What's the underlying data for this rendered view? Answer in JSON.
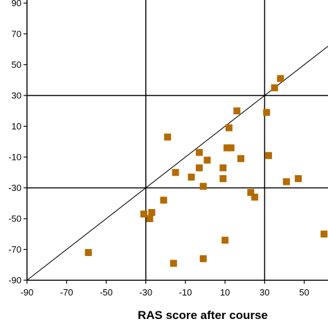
{
  "chart_data": {
    "type": "scatter",
    "title": "",
    "xlabel": "RAS score after course",
    "ylabel": "",
    "xlim": [
      -90,
      62
    ],
    "ylim": [
      -90,
      92
    ],
    "xticks": [
      -90,
      -70,
      -50,
      -30,
      -10,
      10,
      30,
      50
    ],
    "yticks": [
      -90,
      -70,
      -50,
      -30,
      -10,
      10,
      30,
      50,
      70,
      90
    ],
    "xtick_labels": [
      "-90",
      "-70",
      "-50",
      "-30",
      "-10",
      "10",
      "30",
      "50"
    ],
    "ytick_labels": [
      "-90",
      "-70",
      "-50",
      "-30",
      "-10",
      "10",
      "30",
      "50",
      "70",
      "90"
    ],
    "reference_lines": {
      "x": [
        -30,
        30
      ],
      "y": [
        -30,
        30
      ]
    },
    "diagonal": "y = x",
    "grid": false,
    "marker_color": "#b36b00",
    "marker_shape": "square",
    "series": [
      {
        "points": [
          {
            "x": -59,
            "y": -72
          },
          {
            "x": -31,
            "y": -47
          },
          {
            "x": -28,
            "y": -50
          },
          {
            "x": -27,
            "y": -46
          },
          {
            "x": -21,
            "y": -38
          },
          {
            "x": -19,
            "y": 3
          },
          {
            "x": -16,
            "y": -79
          },
          {
            "x": -15,
            "y": -20
          },
          {
            "x": -7,
            "y": -23
          },
          {
            "x": -3,
            "y": -7
          },
          {
            "x": -3,
            "y": -17
          },
          {
            "x": -1,
            "y": -76
          },
          {
            "x": -1,
            "y": -29
          },
          {
            "x": 1,
            "y": -12
          },
          {
            "x": 9,
            "y": -17
          },
          {
            "x": 9,
            "y": -24
          },
          {
            "x": 10,
            "y": -64
          },
          {
            "x": 11,
            "y": -4
          },
          {
            "x": 12,
            "y": 9
          },
          {
            "x": 13,
            "y": -4
          },
          {
            "x": 16,
            "y": 20
          },
          {
            "x": 18,
            "y": -11
          },
          {
            "x": 23,
            "y": -33
          },
          {
            "x": 25,
            "y": -36
          },
          {
            "x": 31,
            "y": 19
          },
          {
            "x": 32,
            "y": -9
          },
          {
            "x": 35,
            "y": 35
          },
          {
            "x": 38,
            "y": 41
          },
          {
            "x": 41,
            "y": -26
          },
          {
            "x": 47,
            "y": -24
          },
          {
            "x": 60,
            "y": -60
          }
        ]
      }
    ]
  }
}
